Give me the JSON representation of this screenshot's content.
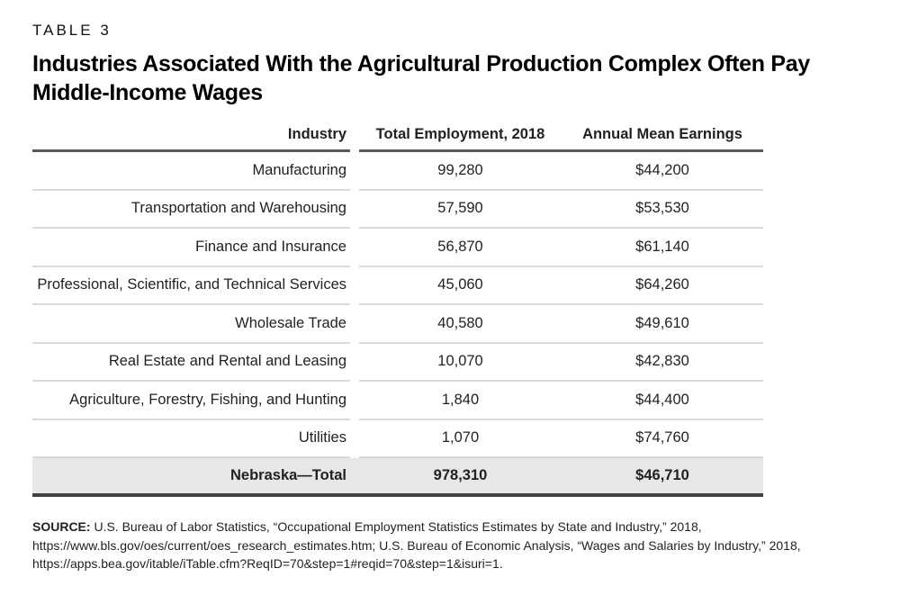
{
  "kicker": "TABLE 3",
  "title": "Industries Associated With the Agricultural Production Complex Often Pay Middle-Income Wages",
  "table": {
    "headers": [
      "Industry",
      "Total Employment, 2018",
      "Annual Mean Earnings"
    ],
    "rows": [
      {
        "industry": "Manufacturing",
        "employment": "99,280",
        "earnings": "$44,200"
      },
      {
        "industry": "Transportation and Warehousing",
        "employment": "57,590",
        "earnings": "$53,530"
      },
      {
        "industry": "Finance and Insurance",
        "employment": "56,870",
        "earnings": "$61,140"
      },
      {
        "industry": "Professional, Scientific, and Technical Services",
        "employment": "45,060",
        "earnings": "$64,260"
      },
      {
        "industry": "Wholesale Trade",
        "employment": "40,580",
        "earnings": "$49,610"
      },
      {
        "industry": "Real Estate and Rental and Leasing",
        "employment": "10,070",
        "earnings": "$42,830"
      },
      {
        "industry": "Agriculture, Forestry, Fishing, and Hunting",
        "employment": "1,840",
        "earnings": "$44,400"
      },
      {
        "industry": "Utilities",
        "employment": "1,070",
        "earnings": "$74,760"
      }
    ],
    "total": {
      "label": "Nebraska—Total",
      "employment": "978,310",
      "earnings": "$46,710"
    }
  },
  "source": {
    "label": "SOURCE:",
    "text": " U.S. Bureau of Labor Statistics, “Occupational Employment Statistics Estimates by State and Industry,” 2018, https://www.bls.gov/oes/current/oes_research_estimates.htm; U.S. Bureau of Economic Analysis, “Wages and Salaries by Industry,” 2018, https://apps.bea.gov/itable/iTable.cfm?ReqID=70&step=1#reqid=70&step=1&isuri=1."
  },
  "colors": {
    "header_rule": "#58595b",
    "row_separator": "#d9dadb",
    "total_row_background": "#e6e7e8",
    "bottom_rule": "#3f4042",
    "text": "#231f20"
  }
}
